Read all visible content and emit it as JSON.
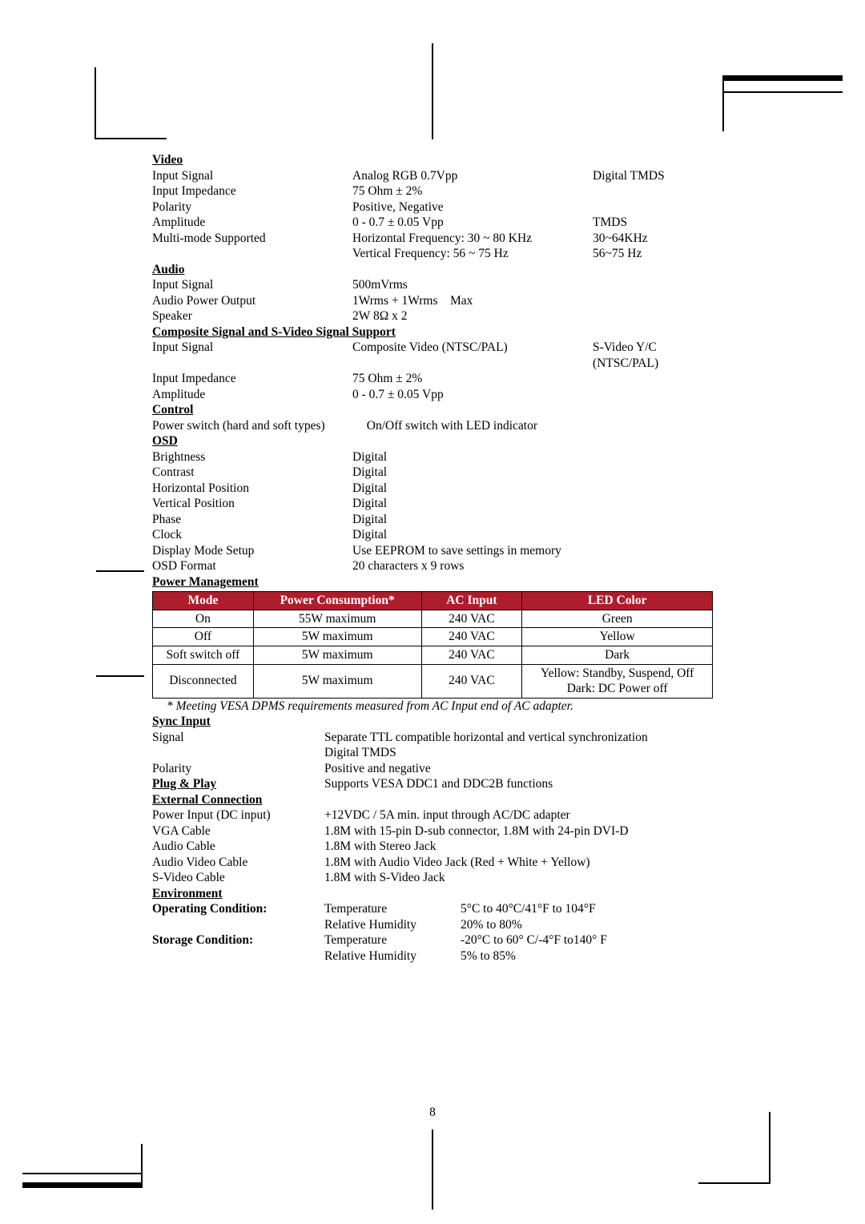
{
  "video": {
    "heading": "Video",
    "rows": [
      {
        "label": "Input Signal",
        "mid": "Analog RGB 0.7Vpp",
        "right": "Digital TMDS"
      },
      {
        "label": "Input Impedance",
        "mid": "75 Ohm ± 2%",
        "right": ""
      },
      {
        "label": "Polarity",
        "mid": "Positive, Negative",
        "right": ""
      },
      {
        "label": "Amplitude",
        "mid": "0 - 0.7 ± 0.05 Vpp",
        "right": "TMDS"
      },
      {
        "label": "Multi-mode Supported",
        "mid": "Horizontal Frequency: 30 ~ 80 KHz",
        "right": "30~64KHz"
      },
      {
        "label": "",
        "mid": "Vertical Frequency: 56 ~ 75 Hz",
        "right": "56~75 Hz"
      }
    ]
  },
  "audio": {
    "heading": "Audio",
    "rows": [
      {
        "label": "Input Signal",
        "mid": "500mVrms",
        "right": ""
      },
      {
        "label": "Audio Power Output",
        "mid": "1Wrms + 1Wrms Max",
        "right": ""
      },
      {
        "label": "Speaker",
        "mid": "2W 8Ω x 2",
        "right": ""
      }
    ]
  },
  "composite": {
    "heading": "Composite Signal and S-Video Signal Support",
    "rows": [
      {
        "label": "Input Signal",
        "mid": "Composite Video (NTSC/PAL)",
        "right": "S-Video Y/C (NTSC/PAL)"
      },
      {
        "label": "Input Impedance",
        "mid": "75 Ohm ± 2%",
        "right": ""
      },
      {
        "label": "Amplitude",
        "mid": "0 - 0.7 ± 0.05 Vpp",
        "right": ""
      }
    ]
  },
  "control": {
    "heading": "Control",
    "rows": [
      {
        "label": "Power switch (hard and soft types)",
        "mid": "  On/Off switch with LED indicator",
        "right": ""
      }
    ]
  },
  "osd": {
    "heading": "OSD",
    "rows": [
      {
        "label": "Brightness",
        "mid": "Digital",
        "right": ""
      },
      {
        "label": "Contrast",
        "mid": "Digital",
        "right": ""
      },
      {
        "label": "Horizontal Position",
        "mid": "Digital",
        "right": ""
      },
      {
        "label": "Vertical Position",
        "mid": "Digital",
        "right": ""
      },
      {
        "label": "Phase",
        "mid": "Digital",
        "right": ""
      },
      {
        "label": "Clock",
        "mid": "Digital",
        "right": ""
      },
      {
        "label": "Display Mode Setup",
        "mid": "Use EEPROM to save settings in memory",
        "right": ""
      },
      {
        "label": "OSD Format",
        "mid": "20 characters x 9 rows",
        "right": ""
      }
    ]
  },
  "pm": {
    "heading": "Power Management",
    "header_bg": "#ae1d2c",
    "header_fg": "#ffffff",
    "columns": [
      "Mode",
      "Power Consumption*",
      "AC Input",
      "LED Color"
    ],
    "rows": [
      [
        "On",
        "55W maximum",
        "240 VAC",
        "Green"
      ],
      [
        "Off",
        "5W maximum",
        "240 VAC",
        "Yellow"
      ],
      [
        "Soft switch off",
        "5W maximum",
        "240 VAC",
        "Dark"
      ],
      [
        "Disconnected",
        "5W maximum",
        "240 VAC",
        "Yellow: Standby, Suspend, Off\nDark: DC Power off"
      ]
    ],
    "footnote": "* Meeting VESA DPMS requirements measured from AC Input end of AC adapter."
  },
  "sync": {
    "heading": "Sync Input",
    "rows": [
      {
        "label": "Signal",
        "mid": "Separate TTL compatible horizontal and vertical synchronization\nDigital TMDS",
        "right": ""
      },
      {
        "label": "Polarity",
        "mid": "Positive and negative",
        "right": ""
      }
    ]
  },
  "plug": {
    "heading": "Plug & Play",
    "value": "Supports VESA DDC1 and DDC2B functions"
  },
  "ext": {
    "heading": "External Connection",
    "rows": [
      {
        "label": "Power Input (DC input)",
        "mid": "+12VDC / 5A min. input through AC/DC adapter",
        "right": ""
      },
      {
        "label": "VGA Cable",
        "mid": "1.8M with 15-pin D-sub connector, 1.8M with 24-pin DVI-D",
        "right": ""
      },
      {
        "label": "Audio Cable",
        "mid": "1.8M with Stereo Jack",
        "right": ""
      },
      {
        "label": "Audio Video Cable",
        "mid": "1.8M with Audio Video Jack (Red + White + Yellow)",
        "right": ""
      },
      {
        "label": "S-Video Cable",
        "mid": "1.8M with S-Video Jack",
        "right": ""
      }
    ]
  },
  "env": {
    "heading": "Environment",
    "rows": [
      {
        "label_bold": true,
        "label": "Operating Condition:",
        "mid": "Temperature",
        "right": "5°C to 40°C/41°F to 104°F"
      },
      {
        "label": "",
        "mid": "Relative Humidity",
        "right": "20% to 80%"
      },
      {
        "label_bold": true,
        "label": "Storage Condition:",
        "mid": "Temperature",
        "right": "-20°C to 60° C/-4°F to140° F"
      },
      {
        "label": "",
        "mid": "Relative Humidity",
        "right": "5% to 85%"
      }
    ]
  },
  "page_number": "8"
}
